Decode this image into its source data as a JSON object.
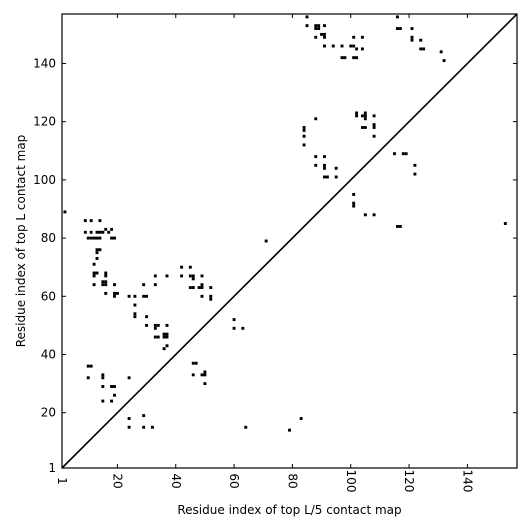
{
  "chart_data": {
    "type": "scatter",
    "title": "",
    "xlabel": "Residue index of top L/5 contact map",
    "ylabel": "Residue index of top L contact map",
    "xlim": [
      1,
      157
    ],
    "ylim": [
      1,
      157
    ],
    "x_ticks": [
      1,
      20,
      40,
      60,
      80,
      100,
      120,
      140
    ],
    "y_ticks": [
      1,
      20,
      40,
      60,
      80,
      100,
      120,
      140
    ],
    "x_tick_labels": [
      "1",
      "20",
      "40",
      "60",
      "80",
      "100",
      "120",
      "140"
    ],
    "y_tick_labels": [
      "1",
      "20",
      "40",
      "60",
      "80",
      "100",
      "120",
      "140"
    ],
    "grid": false,
    "diagonal_line": true,
    "marker": "square",
    "marker_color": "#000000",
    "points_below_diagonal": [
      [
        9,
        86
      ],
      [
        11,
        86
      ],
      [
        14,
        86
      ],
      [
        16,
        83
      ],
      [
        17,
        82
      ],
      [
        18,
        83
      ],
      [
        9,
        82
      ],
      [
        11,
        82
      ],
      [
        13,
        82
      ],
      [
        14,
        82
      ],
      [
        15,
        82
      ],
      [
        10,
        80
      ],
      [
        11,
        80
      ],
      [
        12,
        80
      ],
      [
        13,
        80
      ],
      [
        14,
        80
      ],
      [
        18,
        80
      ],
      [
        19,
        80
      ],
      [
        13,
        76
      ],
      [
        14,
        76
      ],
      [
        13,
        75
      ],
      [
        13,
        73
      ],
      [
        12,
        71
      ],
      [
        12,
        68
      ],
      [
        13,
        68
      ],
      [
        16,
        68
      ],
      [
        16,
        67
      ],
      [
        12,
        67
      ],
      [
        15,
        65
      ],
      [
        16,
        65
      ],
      [
        12,
        64
      ],
      [
        15,
        64
      ],
      [
        16,
        64
      ],
      [
        19,
        64
      ],
      [
        16,
        61
      ],
      [
        19,
        61
      ],
      [
        20,
        61
      ],
      [
        19,
        60
      ],
      [
        24,
        60
      ],
      [
        26,
        60
      ],
      [
        29,
        60
      ],
      [
        30,
        60
      ],
      [
        29,
        64
      ],
      [
        33,
        64
      ],
      [
        33,
        67
      ],
      [
        37,
        67
      ],
      [
        26,
        57
      ],
      [
        26,
        54
      ],
      [
        26,
        53
      ],
      [
        30,
        53
      ],
      [
        30,
        50
      ],
      [
        33,
        50
      ],
      [
        34,
        50
      ],
      [
        37,
        50
      ],
      [
        33,
        49
      ],
      [
        36,
        47
      ],
      [
        37,
        47
      ],
      [
        33,
        46
      ],
      [
        34,
        46
      ],
      [
        36,
        46
      ],
      [
        37,
        46
      ],
      [
        37,
        43
      ],
      [
        36,
        42
      ],
      [
        42,
        70
      ],
      [
        45,
        70
      ],
      [
        42,
        67
      ],
      [
        45,
        67
      ],
      [
        46,
        67
      ],
      [
        49,
        67
      ],
      [
        46,
        66
      ],
      [
        45,
        63
      ],
      [
        46,
        63
      ],
      [
        48,
        63
      ],
      [
        49,
        63
      ],
      [
        49,
        64
      ],
      [
        52,
        63
      ],
      [
        49,
        60
      ],
      [
        52,
        60
      ],
      [
        52,
        59
      ],
      [
        60,
        52
      ],
      [
        60,
        49
      ],
      [
        63,
        49
      ],
      [
        46,
        37
      ],
      [
        47,
        37
      ],
      [
        46,
        33
      ],
      [
        49,
        33
      ],
      [
        50,
        33
      ],
      [
        50,
        34
      ],
      [
        50,
        30
      ],
      [
        10,
        36
      ],
      [
        11,
        36
      ],
      [
        10,
        32
      ],
      [
        15,
        33
      ],
      [
        15,
        32
      ],
      [
        15,
        29
      ],
      [
        18,
        29
      ],
      [
        19,
        29
      ],
      [
        19,
        26
      ],
      [
        15,
        24
      ],
      [
        18,
        24
      ],
      [
        24,
        32
      ],
      [
        24,
        18
      ],
      [
        29,
        19
      ],
      [
        24,
        15
      ],
      [
        29,
        15
      ],
      [
        32,
        15
      ],
      [
        64,
        15
      ],
      [
        71,
        79
      ],
      [
        79,
        14
      ],
      [
        83,
        18
      ],
      [
        2,
        89
      ],
      [
        153,
        85
      ],
      [
        105,
        88
      ],
      [
        108,
        88
      ],
      [
        116,
        84
      ],
      [
        117,
        84
      ]
    ],
    "points_above_diagonal": [
      [
        85,
        156
      ],
      [
        85,
        153
      ],
      [
        88,
        153
      ],
      [
        89,
        153
      ],
      [
        91,
        153
      ],
      [
        88,
        152
      ],
      [
        89,
        152
      ],
      [
        91,
        150
      ],
      [
        90,
        150
      ],
      [
        88,
        149
      ],
      [
        91,
        149
      ],
      [
        91,
        146
      ],
      [
        94,
        146
      ],
      [
        97,
        146
      ],
      [
        100,
        146
      ],
      [
        101,
        146
      ],
      [
        102,
        145
      ],
      [
        104,
        145
      ],
      [
        97,
        142
      ],
      [
        98,
        142
      ],
      [
        101,
        142
      ],
      [
        102,
        142
      ],
      [
        101,
        149
      ],
      [
        104,
        149
      ],
      [
        116,
        156
      ],
      [
        116,
        152
      ],
      [
        117,
        152
      ],
      [
        121,
        152
      ],
      [
        121,
        149
      ],
      [
        121,
        148
      ],
      [
        124,
        148
      ],
      [
        124,
        145
      ],
      [
        125,
        145
      ],
      [
        131,
        144
      ],
      [
        132,
        141
      ],
      [
        84,
        118
      ],
      [
        84,
        117
      ],
      [
        84,
        115
      ],
      [
        84,
        112
      ],
      [
        88,
        121
      ],
      [
        102,
        123
      ],
      [
        102,
        122
      ],
      [
        104,
        122
      ],
      [
        105,
        122
      ],
      [
        105,
        123
      ],
      [
        105,
        121
      ],
      [
        104,
        118
      ],
      [
        105,
        118
      ],
      [
        108,
        122
      ],
      [
        108,
        119
      ],
      [
        108,
        118
      ],
      [
        108,
        115
      ],
      [
        88,
        108
      ],
      [
        91,
        108
      ],
      [
        88,
        105
      ],
      [
        91,
        105
      ],
      [
        91,
        104
      ],
      [
        91,
        101
      ],
      [
        92,
        101
      ],
      [
        95,
        104
      ],
      [
        95,
        101
      ],
      [
        115,
        109
      ],
      [
        118,
        109
      ],
      [
        119,
        109
      ],
      [
        122,
        105
      ],
      [
        122,
        102
      ],
      [
        101,
        95
      ],
      [
        101,
        92
      ],
      [
        101,
        91
      ]
    ]
  }
}
